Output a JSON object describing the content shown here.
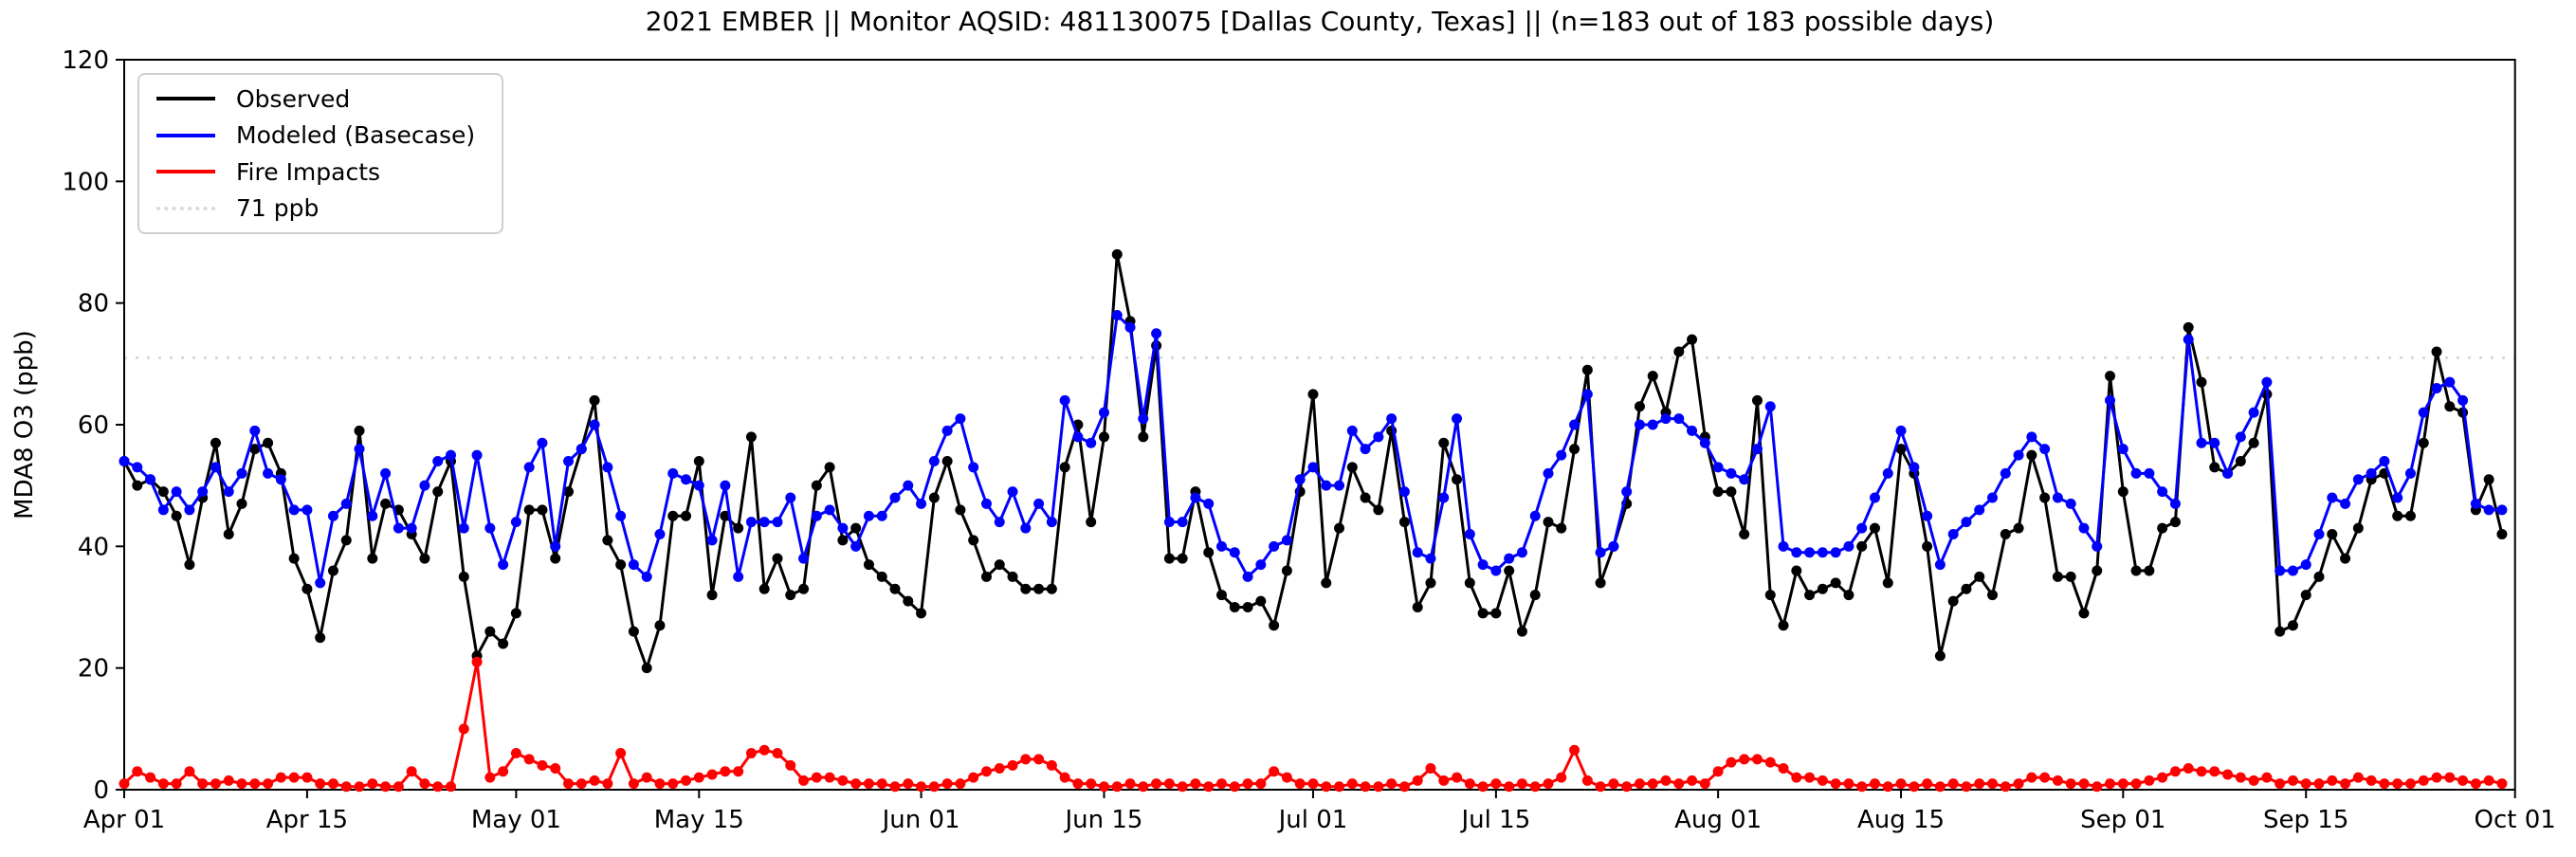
{
  "title": "2021 EMBER || Monitor AQSID: 481130075 [Dallas County, Texas] || (n=183 out of 183 possible days)",
  "legend": {
    "items": [
      {
        "label": "Observed",
        "color": "#000000",
        "style": "solid"
      },
      {
        "label": "Modeled (Basecase)",
        "color": "#0000ff",
        "style": "solid"
      },
      {
        "label": "Fire Impacts",
        "color": "#ff0000",
        "style": "solid"
      },
      {
        "label": "71 ppb",
        "color": "#d9d9d9",
        "style": "dotted"
      }
    ]
  },
  "chart_data": {
    "type": "line",
    "title": "2021 EMBER || Monitor AQSID: 481130075 [Dallas County, Texas] || (n=183 out of 183 possible days)",
    "xlabel": "",
    "ylabel": "MDA8 O3 (ppb)",
    "ylim": [
      0,
      120
    ],
    "yticks": [
      0,
      20,
      40,
      60,
      80,
      100,
      120
    ],
    "n_days": 183,
    "x_range": [
      "Apr 01",
      "Oct 01"
    ],
    "grid": false,
    "legend_position": "upper left",
    "reference_line": {
      "label": "71 ppb",
      "value": 71,
      "color": "#d9d9d9",
      "style": "dotted"
    },
    "xticks": [
      {
        "day": 0,
        "label": "Apr 01"
      },
      {
        "day": 14,
        "label": "Apr 15"
      },
      {
        "day": 30,
        "label": "May 01"
      },
      {
        "day": 44,
        "label": "May 15"
      },
      {
        "day": 61,
        "label": "Jun 01"
      },
      {
        "day": 75,
        "label": "Jun 15"
      },
      {
        "day": 91,
        "label": "Jul 01"
      },
      {
        "day": 105,
        "label": "Jul 15"
      },
      {
        "day": 122,
        "label": "Aug 01"
      },
      {
        "day": 136,
        "label": "Aug 15"
      },
      {
        "day": 153,
        "label": "Sep 01"
      },
      {
        "day": 167,
        "label": "Sep 15"
      },
      {
        "day": 183,
        "label": "Oct 01"
      }
    ],
    "series": [
      {
        "name": "Observed",
        "color": "#000000",
        "values": [
          54,
          50,
          51,
          49,
          45,
          37,
          48,
          57,
          42,
          47,
          56,
          57,
          52,
          38,
          33,
          25,
          36,
          41,
          59,
          38,
          47,
          46,
          42,
          38,
          49,
          54,
          35,
          22,
          26,
          24,
          29,
          46,
          46,
          38,
          49,
          56,
          64,
          41,
          37,
          26,
          20,
          27,
          45,
          45,
          54,
          32,
          45,
          43,
          58,
          33,
          38,
          32,
          33,
          50,
          53,
          41,
          43,
          37,
          35,
          33,
          31,
          29,
          48,
          54,
          46,
          41,
          35,
          37,
          35,
          33,
          33,
          33,
          53,
          60,
          44,
          58,
          88,
          77,
          58,
          73,
          38,
          38,
          49,
          39,
          32,
          30,
          30,
          31,
          27,
          36,
          49,
          65,
          34,
          43,
          53,
          48,
          46,
          59,
          44,
          30,
          34,
          57,
          51,
          34,
          29,
          29,
          36,
          26,
          32,
          44,
          43,
          56,
          69,
          34,
          40,
          47,
          63,
          68,
          62,
          72,
          74,
          58,
          49,
          49,
          42,
          64,
          32,
          27,
          36,
          32,
          33,
          34,
          32,
          40,
          43,
          34,
          56,
          52,
          40,
          22,
          31,
          33,
          35,
          32,
          42,
          43,
          55,
          48,
          35,
          35,
          29,
          36,
          68,
          49,
          36,
          36,
          43,
          44,
          76,
          67,
          53,
          52,
          54,
          57,
          65,
          26,
          27,
          32,
          35,
          42,
          38,
          43,
          51,
          52,
          45,
          45,
          57,
          72,
          63,
          62,
          46,
          51,
          42
        ]
      },
      {
        "name": "Modeled (Basecase)",
        "color": "#0000ff",
        "values": [
          54,
          53,
          51,
          46,
          49,
          46,
          49,
          53,
          49,
          52,
          59,
          52,
          51,
          46,
          46,
          34,
          45,
          47,
          56,
          45,
          52,
          43,
          43,
          50,
          54,
          55,
          43,
          55,
          43,
          37,
          44,
          53,
          57,
          40,
          54,
          56,
          60,
          53,
          45,
          37,
          35,
          42,
          52,
          51,
          50,
          41,
          50,
          35,
          44,
          44,
          44,
          48,
          38,
          45,
          46,
          43,
          40,
          45,
          45,
          48,
          50,
          47,
          54,
          59,
          61,
          53,
          47,
          44,
          49,
          43,
          47,
          44,
          64,
          58,
          57,
          62,
          78,
          76,
          61,
          75,
          44,
          44,
          48,
          47,
          40,
          39,
          35,
          37,
          40,
          41,
          51,
          53,
          50,
          50,
          59,
          56,
          58,
          61,
          49,
          39,
          38,
          48,
          61,
          42,
          37,
          36,
          38,
          39,
          45,
          52,
          55,
          60,
          65,
          39,
          40,
          49,
          60,
          60,
          61,
          61,
          59,
          57,
          53,
          52,
          51,
          56,
          63,
          40,
          39,
          39,
          39,
          39,
          40,
          43,
          48,
          52,
          59,
          53,
          45,
          37,
          42,
          44,
          46,
          48,
          52,
          55,
          58,
          56,
          48,
          47,
          43,
          40,
          64,
          56,
          52,
          52,
          49,
          47,
          74,
          57,
          57,
          52,
          58,
          62,
          67,
          36,
          36,
          37,
          42,
          48,
          47,
          51,
          52,
          54,
          48,
          52,
          62,
          66,
          67,
          64,
          47,
          46,
          46
        ]
      },
      {
        "name": "Fire Impacts",
        "color": "#ff0000",
        "values": [
          1,
          3,
          2,
          1,
          1,
          3,
          1,
          1,
          1.5,
          1,
          1,
          1,
          2,
          2,
          2,
          1,
          1,
          0.5,
          0.5,
          1,
          0.5,
          0.5,
          3,
          1,
          0.5,
          0.5,
          10,
          21,
          2,
          3,
          6,
          5,
          4,
          3.5,
          1,
          1,
          1.5,
          1,
          6,
          1,
          2,
          1,
          1,
          1.5,
          2,
          2.5,
          3,
          3,
          6,
          6.5,
          6,
          4,
          1.5,
          2,
          2,
          1.5,
          1,
          1,
          1,
          0.5,
          1,
          0.5,
          0.5,
          1,
          1,
          2,
          3,
          3.5,
          4,
          5,
          5,
          4,
          2,
          1,
          1,
          0.5,
          0.5,
          1,
          0.5,
          1,
          1,
          0.5,
          1,
          0.5,
          1,
          0.5,
          1,
          1,
          3,
          2,
          1,
          1,
          0.5,
          0.5,
          1,
          0.5,
          0.5,
          1,
          0.5,
          1.5,
          3.5,
          1.5,
          2,
          1,
          0.5,
          1,
          0.5,
          1,
          0.5,
          1,
          2,
          6.5,
          1.5,
          0.5,
          1,
          0.5,
          1,
          1,
          1.5,
          1,
          1.5,
          1,
          3,
          4.5,
          5,
          5,
          4.5,
          3.5,
          2,
          2,
          1.5,
          1,
          1,
          0.5,
          1,
          0.5,
          1,
          0.5,
          1,
          0.5,
          1,
          0.5,
          1,
          1,
          0.5,
          1,
          2,
          2,
          1.5,
          1,
          1,
          0.5,
          1,
          1,
          1,
          1.5,
          2,
          3,
          3.5,
          3,
          3,
          2.5,
          2,
          1.5,
          2,
          1,
          1.5,
          1,
          1,
          1.5,
          1,
          2,
          1.5,
          1,
          1,
          1,
          1.5,
          2,
          2,
          1.5,
          1,
          1.5,
          1
        ]
      }
    ]
  }
}
